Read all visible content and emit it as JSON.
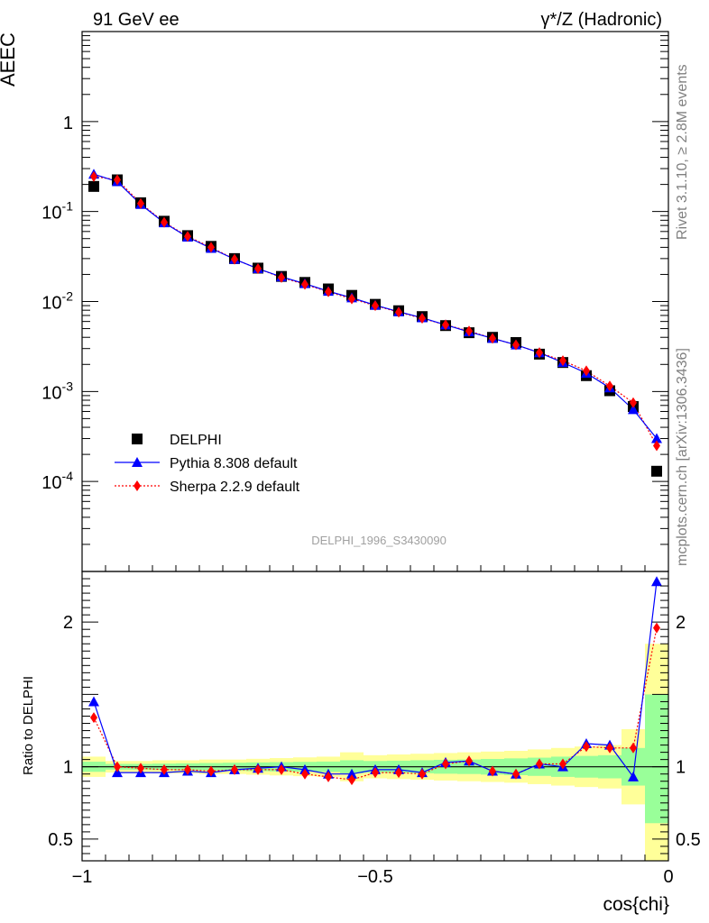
{
  "header": {
    "left": "91 GeV ee",
    "right": "γ*/Z (Hadronic)"
  },
  "side": {
    "rivet": "Rivet 3.1.10, ≥ 2.8M events",
    "mcplots": "mcplots.cern.ch [arXiv:1306.3436]"
  },
  "watermark": "DELPHI_1996_S3430090",
  "chart_data": [
    {
      "type": "scatter",
      "ylabel": "AEEC",
      "yscale": "log",
      "xlim": [
        -1.0,
        0.0
      ],
      "ylim": [
        1e-05,
        10
      ],
      "y_ticklabels": [
        "10^-4",
        "10^-3",
        "10^-2",
        "10^-1",
        "1"
      ],
      "x": [
        -0.98,
        -0.94,
        -0.9,
        -0.86,
        -0.82,
        -0.78,
        -0.74,
        -0.7,
        -0.66,
        -0.62,
        -0.58,
        -0.54,
        -0.5,
        -0.46,
        -0.42,
        -0.38,
        -0.34,
        -0.3,
        -0.26,
        -0.22,
        -0.18,
        -0.14,
        -0.1,
        -0.06,
        -0.02
      ],
      "series": [
        {
          "name": "DELPHI",
          "color": "#000000",
          "marker": "square",
          "values": [
            0.19,
            0.225,
            0.125,
            0.078,
            0.054,
            0.041,
            0.03,
            0.0235,
            0.019,
            0.0163,
            0.0138,
            0.0117,
            0.0093,
            0.0079,
            0.0068,
            0.0054,
            0.0045,
            0.004,
            0.0035,
            0.0026,
            0.0021,
            0.0015,
            0.00102,
            0.00068,
            0.00013
          ]
        },
        {
          "name": "Pythia 8.308 default",
          "color": "#0000ff",
          "marker": "triangle",
          "values": [
            0.26,
            0.215,
            0.12,
            0.075,
            0.052,
            0.039,
            0.0295,
            0.0232,
            0.0188,
            0.0158,
            0.013,
            0.011,
            0.0091,
            0.0077,
            0.0066,
            0.0055,
            0.0046,
            0.0039,
            0.0033,
            0.0027,
            0.0021,
            0.0016,
            0.0011,
            0.00063,
            0.0003
          ]
        },
        {
          "name": "Sherpa 2.2.9 default",
          "color": "#ff0000",
          "marker": "diamond",
          "values": [
            0.245,
            0.225,
            0.123,
            0.076,
            0.053,
            0.04,
            0.0295,
            0.0232,
            0.0185,
            0.0155,
            0.0128,
            0.0107,
            0.009,
            0.0076,
            0.0065,
            0.0055,
            0.0047,
            0.0039,
            0.0033,
            0.0027,
            0.0022,
            0.0017,
            0.00115,
            0.00075,
            0.00025
          ]
        }
      ]
    },
    {
      "type": "scatter",
      "xlabel": "cos{chi}",
      "ylabel": "Ratio to DELPHI",
      "xlim": [
        -1.0,
        0.0
      ],
      "ylim": [
        0.35,
        2.35
      ],
      "x_ticklabels": [
        "−1",
        "−0.5",
        "0"
      ],
      "y_ticklabels": [
        "0.5",
        "1",
        "2"
      ],
      "x": [
        -0.98,
        -0.94,
        -0.9,
        -0.86,
        -0.82,
        -0.78,
        -0.74,
        -0.7,
        -0.66,
        -0.62,
        -0.58,
        -0.54,
        -0.5,
        -0.46,
        -0.42,
        -0.38,
        -0.34,
        -0.3,
        -0.26,
        -0.22,
        -0.18,
        -0.14,
        -0.1,
        -0.06,
        -0.02
      ],
      "bands": {
        "edges": [
          -1.0,
          -0.96,
          -0.92,
          -0.88,
          -0.84,
          -0.8,
          -0.76,
          -0.72,
          -0.68,
          -0.64,
          -0.6,
          -0.56,
          -0.52,
          -0.48,
          -0.44,
          -0.4,
          -0.36,
          -0.32,
          -0.28,
          -0.24,
          -0.2,
          -0.16,
          -0.12,
          -0.08,
          -0.04,
          0.0
        ],
        "yellow": [
          [
            0.93,
            1.07
          ],
          [
            0.96,
            1.04
          ],
          [
            0.96,
            1.04
          ],
          [
            0.955,
            1.045
          ],
          [
            0.955,
            1.045
          ],
          [
            0.95,
            1.05
          ],
          [
            0.95,
            1.05
          ],
          [
            0.945,
            1.055
          ],
          [
            0.94,
            1.06
          ],
          [
            0.935,
            1.065
          ],
          [
            0.93,
            1.07
          ],
          [
            0.9,
            1.1
          ],
          [
            0.92,
            1.08
          ],
          [
            0.915,
            1.085
          ],
          [
            0.91,
            1.09
          ],
          [
            0.905,
            1.095
          ],
          [
            0.9,
            1.1
          ],
          [
            0.895,
            1.105
          ],
          [
            0.89,
            1.11
          ],
          [
            0.88,
            1.12
          ],
          [
            0.87,
            1.13
          ],
          [
            0.86,
            1.14
          ],
          [
            0.85,
            1.15
          ],
          [
            0.74,
            1.26
          ],
          [
            0.35,
            1.85
          ]
        ],
        "green": [
          [
            0.965,
            1.035
          ],
          [
            0.98,
            1.02
          ],
          [
            0.98,
            1.02
          ],
          [
            0.978,
            1.022
          ],
          [
            0.976,
            1.024
          ],
          [
            0.974,
            1.026
          ],
          [
            0.972,
            1.028
          ],
          [
            0.97,
            1.03
          ],
          [
            0.968,
            1.032
          ],
          [
            0.966,
            1.034
          ],
          [
            0.964,
            1.036
          ],
          [
            0.955,
            1.045
          ],
          [
            0.96,
            1.04
          ],
          [
            0.958,
            1.042
          ],
          [
            0.955,
            1.045
          ],
          [
            0.952,
            1.048
          ],
          [
            0.95,
            1.05
          ],
          [
            0.946,
            1.054
          ],
          [
            0.942,
            1.058
          ],
          [
            0.937,
            1.063
          ],
          [
            0.93,
            1.07
          ],
          [
            0.925,
            1.075
          ],
          [
            0.92,
            1.08
          ],
          [
            0.87,
            1.13
          ],
          [
            0.61,
            1.5
          ]
        ]
      },
      "series": [
        {
          "name": "Pythia 8.308 default",
          "color": "#0000ff",
          "values": [
            1.45,
            0.96,
            0.96,
            0.96,
            0.97,
            0.96,
            0.98,
            0.99,
            1.0,
            0.98,
            0.95,
            0.95,
            0.98,
            0.98,
            0.96,
            1.03,
            1.04,
            0.97,
            0.95,
            1.02,
            1.0,
            1.16,
            1.15,
            0.93,
            2.28
          ]
        },
        {
          "name": "Sherpa 2.2.9 default",
          "color": "#ff0000",
          "values": [
            1.34,
            1.0,
            0.99,
            0.98,
            0.98,
            0.97,
            0.98,
            0.98,
            0.98,
            0.95,
            0.93,
            0.91,
            0.96,
            0.96,
            0.95,
            1.02,
            1.04,
            0.97,
            0.95,
            1.02,
            1.02,
            1.14,
            1.13,
            1.13,
            1.96
          ]
        }
      ]
    }
  ]
}
